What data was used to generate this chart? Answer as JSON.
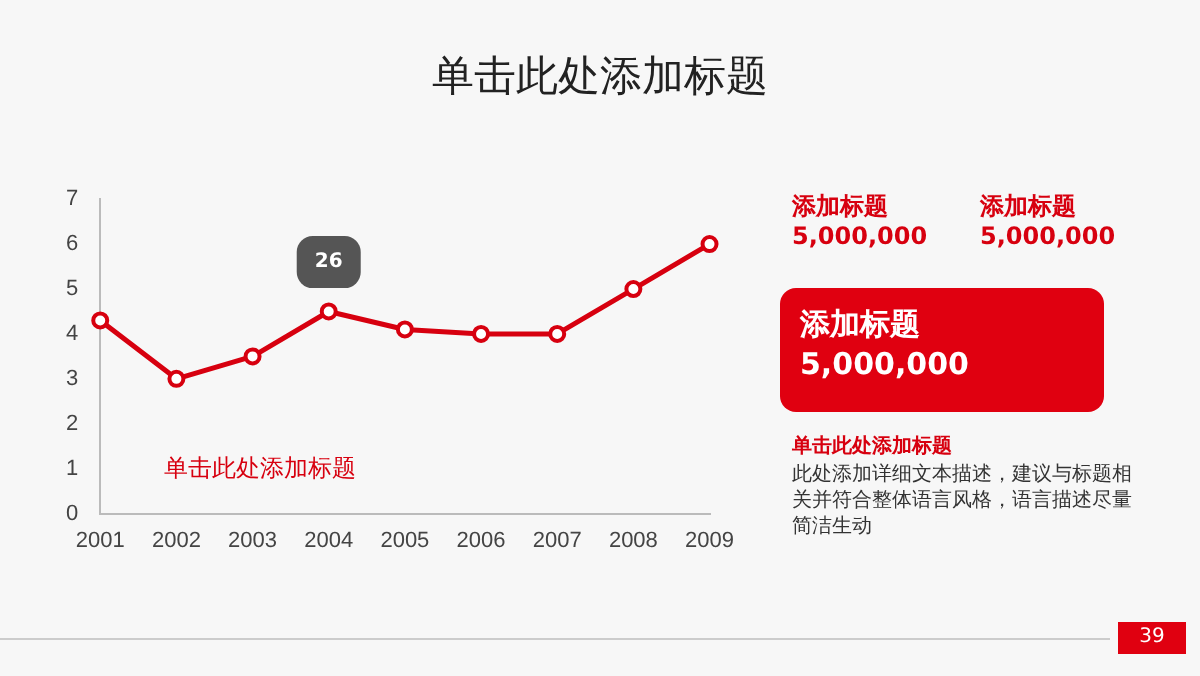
{
  "chart_data": {
    "type": "line",
    "title": "单击此处添加标题",
    "categories": [
      "2001",
      "2002",
      "2003",
      "2004",
      "2005",
      "2006",
      "2007",
      "2008",
      "2009"
    ],
    "series": [
      {
        "color": "#d7000f",
        "values": [
          4.3,
          3.0,
          3.5,
          4.5,
          4.1,
          4.0,
          4.0,
          5.0,
          6.0
        ]
      }
    ],
    "ylim": [
      0,
      7
    ],
    "yticks": [
      0,
      1,
      2,
      3,
      4,
      5,
      6,
      7
    ],
    "grid": false,
    "legend": false,
    "marker": "circle",
    "line_style": "solid",
    "annotations": [
      {
        "text": "26",
        "x": "2004",
        "y": 5.6
      },
      "单击此处添加标题",
      "添加标题\n5,000,000",
      "添加标题\n5,000,000",
      "添加标题\n5,000,000",
      "单击此处添加标题",
      "此处添加详细文本描述，建议与标题相关并符合整体语言风格，语言描述尽量简洁生动",
      "39"
    ]
  }
}
